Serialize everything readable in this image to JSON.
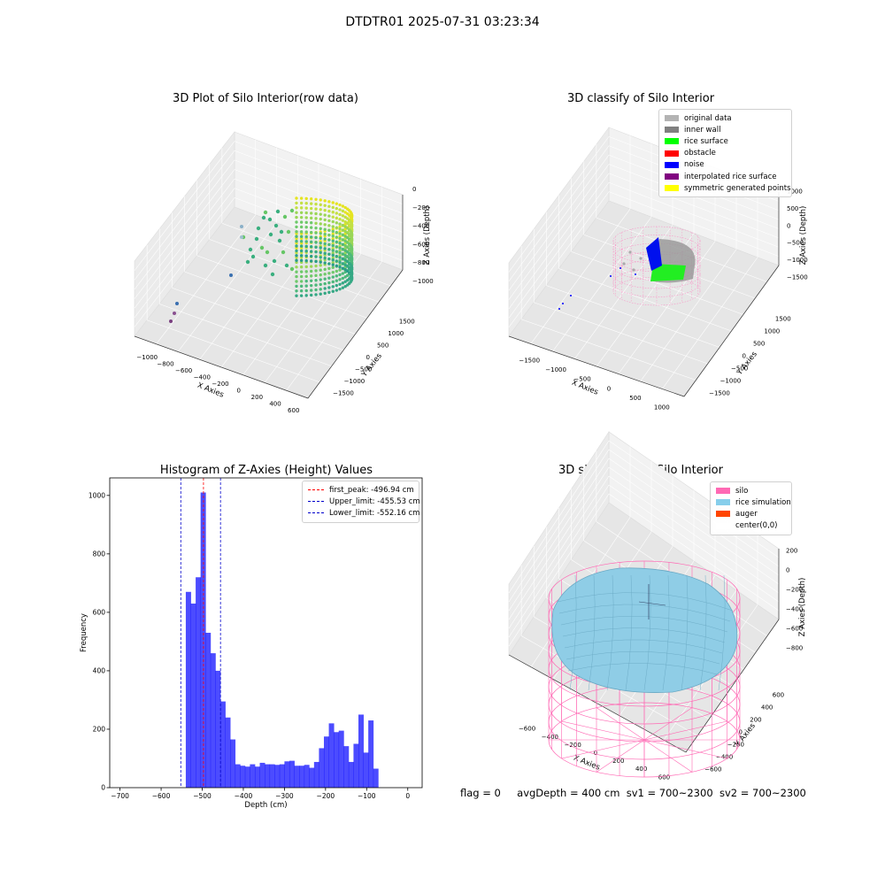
{
  "suptitle": "DTDTR01 2025-07-31 03:23:34",
  "panels": {
    "raw": {
      "title": "3D Plot of Silo Interior(row data)",
      "xlabel": "X Axies",
      "ylabel": "Y Axies",
      "zlabel": "Z Axies (Depth)",
      "xticks": [
        "−1000",
        "−800",
        "−600",
        "−400",
        "−200",
        "0",
        "200",
        "400",
        "600"
      ],
      "yticks": [
        "1500",
        "1000",
        "500",
        "0",
        "−500",
        "−1000",
        "−1500"
      ],
      "zticks": [
        "0",
        "−200",
        "−400",
        "−600",
        "−800",
        "−1000"
      ]
    },
    "classify": {
      "title": "3D classify of Silo Interior",
      "xlabel": "X Axies",
      "ylabel": "Y Axies",
      "zlabel": "Z Axies (Depth)",
      "xticks": [
        "−1500",
        "−1000",
        "−500",
        "0",
        "500",
        "1000"
      ],
      "yticks": [
        "1500",
        "1000",
        "500",
        "0",
        "−500",
        "−1000",
        "−1500"
      ],
      "zticks": [
        "1000",
        "500",
        "0",
        "−500",
        "−1000",
        "−1500"
      ],
      "legend": [
        {
          "label": "original data",
          "color": "#b3b3b3"
        },
        {
          "label": "inner wall",
          "color": "#808080"
        },
        {
          "label": "rice surface",
          "color": "#00ff00"
        },
        {
          "label": "obstacle",
          "color": "#ff0000"
        },
        {
          "label": "noise",
          "color": "#0000ff"
        },
        {
          "label": "interpolated rice surface",
          "color": "#800080"
        },
        {
          "label": "symmetric generated points",
          "color": "#ffff00"
        }
      ]
    },
    "simulation": {
      "title": "3D simulation of Silo Interior",
      "xlabel": "X Axies",
      "ylabel": "Y Axies",
      "zlabel": "Z Axies (Depth)",
      "xticks": [
        "−600",
        "−400",
        "−200",
        "0",
        "200",
        "400",
        "600"
      ],
      "yticks": [
        "600",
        "400",
        "200",
        "0",
        "−200",
        "−400",
        "−600"
      ],
      "zticks": [
        "200",
        "0",
        "−200",
        "−400",
        "−600",
        "−800"
      ],
      "legend": [
        {
          "label": "silo",
          "color": "#ff69b4"
        },
        {
          "label": "rice simulation",
          "color": "#87ceeb"
        },
        {
          "label": "auger",
          "color": "#ff4500"
        },
        {
          "label": "center(0,0)",
          "color": "#ffffff"
        }
      ]
    }
  },
  "chart_data": {
    "type": "bar",
    "title": "Histogram of Z-Axies (Height) Values",
    "xlabel": "Depth (cm)",
    "ylabel": "Frequency",
    "xlim": [
      -725,
      35
    ],
    "ylim": [
      0,
      1060
    ],
    "xticks": [
      -700,
      -600,
      -500,
      -400,
      -300,
      -200,
      -100,
      0
    ],
    "xtick_labels": [
      "−700",
      "−600",
      "−500",
      "−400",
      "−300",
      "−200",
      "−100",
      "0"
    ],
    "yticks": [
      0,
      200,
      400,
      600,
      800,
      1000
    ],
    "bin_edges_start": -540,
    "bin_width": 12,
    "values": [
      670,
      630,
      720,
      1010,
      530,
      460,
      400,
      295,
      240,
      165,
      80,
      75,
      72,
      80,
      72,
      85,
      80,
      80,
      78,
      80,
      90,
      92,
      75,
      75,
      78,
      68,
      88,
      135,
      175,
      220,
      190,
      195,
      142,
      88,
      150,
      250,
      120,
      230,
      65
    ],
    "bar_color": "#0000ff",
    "vlines": [
      {
        "label": "first_peak: -496.94 cm",
        "x": -496.94,
        "color": "#ff0000"
      },
      {
        "label": "Upper_limit: -455.53 cm",
        "x": -455.53,
        "color": "#0000cc"
      },
      {
        "label": "Lower_limit: -552.16 cm",
        "x": -552.16,
        "color": "#0000cc"
      }
    ],
    "grid": false,
    "legend_position": "top-right"
  },
  "status": {
    "flag": "flag = 0",
    "avg_depth": "avgDepth = 400 cm",
    "sv1": "sv1 = 700~2300",
    "sv2": "sv2 = 700~2300"
  }
}
